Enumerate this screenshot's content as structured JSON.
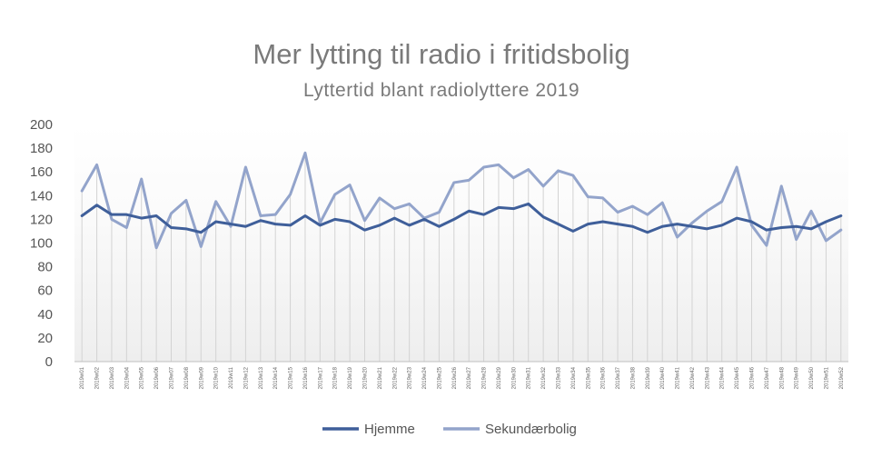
{
  "chart_data": {
    "type": "line",
    "title": "Mer lytting til radio i fritidsbolig",
    "subtitle": "Lyttertid blant radiolyttere 2019",
    "xlabel": "",
    "ylabel": "",
    "ylim": [
      0,
      200
    ],
    "yticks": [
      0,
      20,
      40,
      60,
      80,
      100,
      120,
      140,
      160,
      180,
      200
    ],
    "grid": false,
    "drop_lines": true,
    "legend_position": "bottom",
    "categories": [
      "2019w01",
      "2019w02",
      "2019w03",
      "2019w04",
      "2019w05",
      "2019w06",
      "2019w07",
      "2019w08",
      "2019w09",
      "2019w10",
      "2019w11",
      "2019w12",
      "2019w13",
      "2019w14",
      "2019w15",
      "2019w16",
      "2019w17",
      "2019w18",
      "2019w19",
      "2019w20",
      "2019w21",
      "2019w22",
      "2019w23",
      "2019w24",
      "2019w25",
      "2019w26",
      "2019w27",
      "2019w28",
      "2019w29",
      "2019w30",
      "2019w31",
      "2019w32",
      "2019w33",
      "2019w34",
      "2019w35",
      "2019w36",
      "2019w37",
      "2019w38",
      "2019w39",
      "2019w40",
      "2019w41",
      "2019w42",
      "2019w43",
      "2019w44",
      "2019w45",
      "2019w46",
      "2019w47",
      "2019w48",
      "2019w49",
      "2019w50",
      "2019w51",
      "2019w52"
    ],
    "series": [
      {
        "name": "Hjemme",
        "color": "#3f5f9a",
        "values": [
          123,
          132,
          124,
          124,
          121,
          123,
          113,
          112,
          109,
          118,
          116,
          114,
          119,
          116,
          115,
          123,
          115,
          120,
          118,
          111,
          115,
          121,
          115,
          120,
          114,
          120,
          127,
          124,
          130,
          129,
          133,
          122,
          116,
          110,
          116,
          118,
          116,
          114,
          109,
          114,
          116,
          114,
          112,
          115,
          121,
          118,
          111,
          113,
          114,
          112,
          118,
          123
        ]
      },
      {
        "name": "Sekundærbolig",
        "color": "#93a4cb",
        "values": [
          144,
          166,
          120,
          113,
          154,
          96,
          125,
          136,
          97,
          135,
          114,
          164,
          123,
          124,
          141,
          176,
          117,
          141,
          149,
          119,
          138,
          129,
          133,
          121,
          126,
          151,
          153,
          164,
          166,
          155,
          162,
          148,
          161,
          157,
          139,
          138,
          126,
          131,
          124,
          134,
          105,
          117,
          127,
          135,
          164,
          115,
          98,
          148,
          103,
          127,
          102,
          111
        ]
      }
    ]
  }
}
